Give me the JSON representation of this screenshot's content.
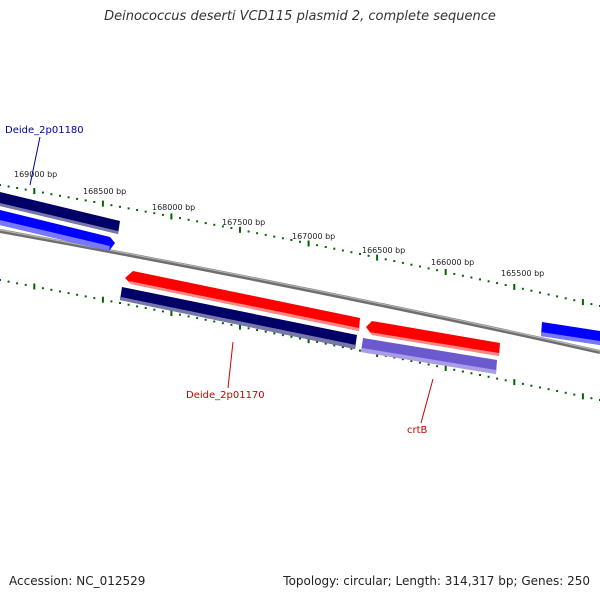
{
  "title": "Deinococcus deserti VCD115 plasmid 2, complete sequence",
  "footer": {
    "accession": "Accession: NC_012529",
    "summary": "Topology: circular; Length: 314,317 bp; Genes: 250"
  },
  "ticks": [
    "169000 bp",
    "168500 bp",
    "168000 bp",
    "167500 bp",
    "167000 bp",
    "166500 bp",
    "166000 bp",
    "165500 bp"
  ],
  "genes": {
    "g1180": "Deide_2p01180",
    "g1170": "Deide_2p01170",
    "crtB": "crtB"
  },
  "colors": {
    "backbone": "#888888",
    "tick": "#006400",
    "cds": "#ff0000",
    "gene_blue": "#0000ff",
    "gene_navy": "#000066",
    "gene_purple": "#6a5acd",
    "label_blue": "#000099",
    "label_red": "#cc0000"
  }
}
